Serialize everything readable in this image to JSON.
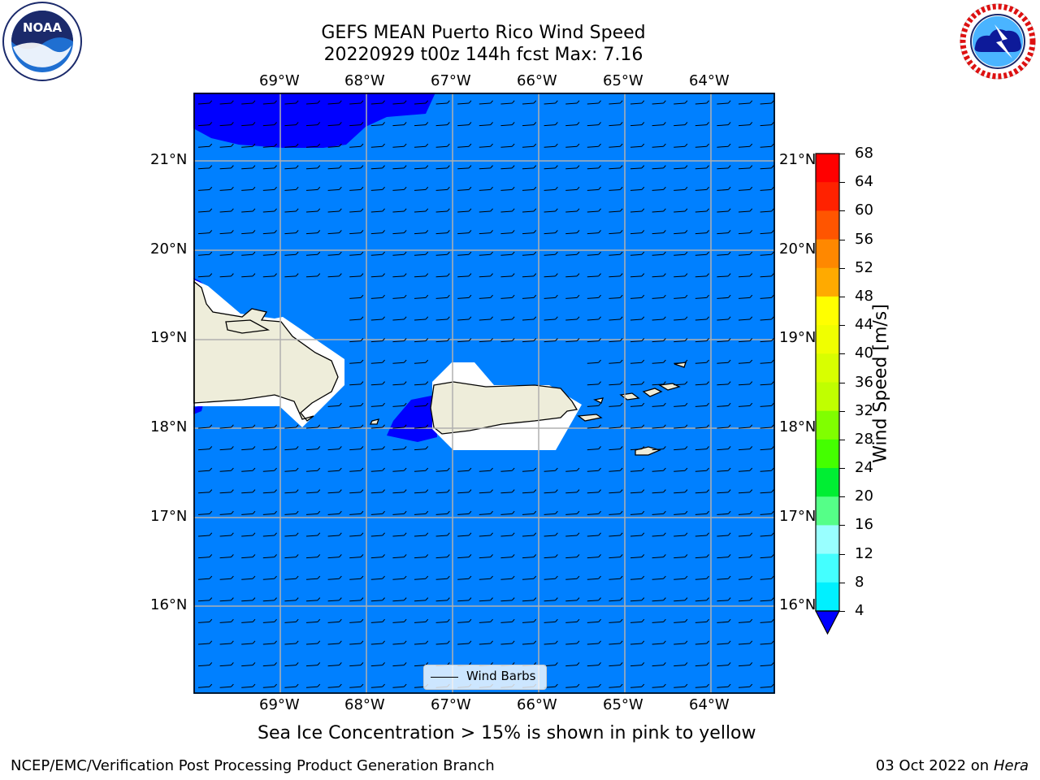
{
  "title": {
    "line1": "GEFS MEAN Puerto Rico Wind Speed",
    "line2": "20220929 t00z 144h fcst   Max: 7.16"
  },
  "axes": {
    "lon_labels": [
      "69°W",
      "68°W",
      "67°W",
      "66°W",
      "65°W",
      "64°W"
    ],
    "lat_labels": [
      "21°N",
      "20°N",
      "19°N",
      "18°N",
      "17°N",
      "16°N"
    ]
  },
  "legend": {
    "label": "Wind Barbs"
  },
  "colorbar": {
    "label": "Wind Speed [m/s]",
    "ticks": [
      "68",
      "64",
      "60",
      "56",
      "52",
      "48",
      "44",
      "40",
      "36",
      "32",
      "28",
      "24",
      "20",
      "16",
      "12",
      "8",
      "4"
    ],
    "colors": [
      "#ff0000",
      "#ff2200",
      "#ff5500",
      "#ff8800",
      "#ffaa00",
      "#ffff00",
      "#f0ff00",
      "#d8ff00",
      "#c0ff00",
      "#80ff00",
      "#44ff00",
      "#00ee33",
      "#55ff88",
      "#99ffff",
      "#44ffff",
      "#00f0ff",
      "#0080ff"
    ],
    "extend_color": "#0000ff"
  },
  "colors": {
    "ocean": "#0080ff",
    "strong": "#0000ff",
    "land": "#eeedda",
    "mask": "#ffffff",
    "grid": "#b0b0b0"
  },
  "caption": "Sea Ice Concentration > 15% is shown in pink to yellow",
  "footer": {
    "left": "NCEP/EMC/Verification Post Processing Product Generation Branch",
    "date": "03 Oct 2022 on ",
    "machine": "Hera"
  },
  "logos": {
    "noaa": "NOAA",
    "nws": "NATIONAL WEATHER SERVICE"
  }
}
